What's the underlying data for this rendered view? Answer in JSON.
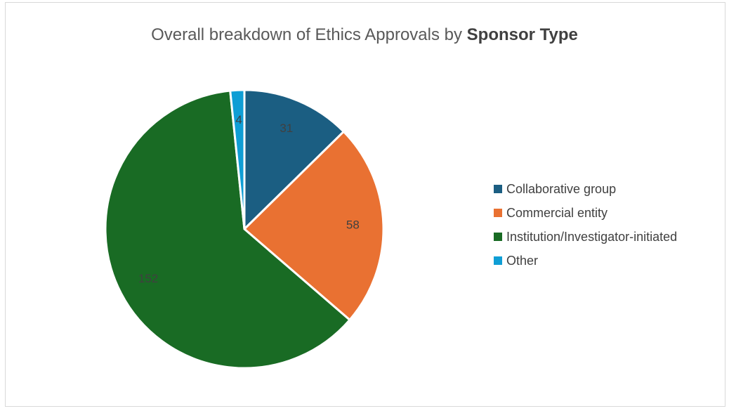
{
  "chart_data": {
    "type": "pie",
    "title": "Overall breakdown of Ethics Approvals by",
    "title_emphasis": "Sponsor Type",
    "legend_position": "right",
    "slices": [
      {
        "label": "Collaborative group",
        "value": 31,
        "color": "#1b5e82"
      },
      {
        "label": "Commercial entity",
        "value": 58,
        "color": "#e97132"
      },
      {
        "label": "Institution/Investigator-initiated",
        "value": 152,
        "color": "#196b24"
      },
      {
        "label": "Other",
        "value": 4,
        "color": "#0f9ed5"
      }
    ]
  }
}
